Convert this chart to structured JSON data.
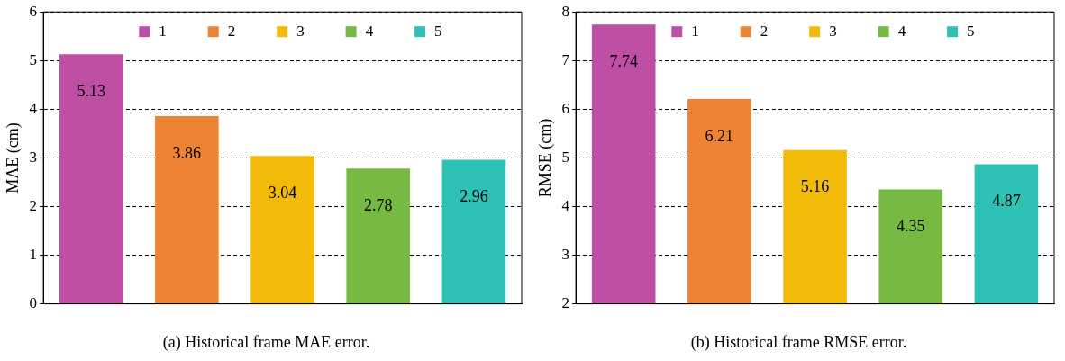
{
  "chart_data": [
    {
      "type": "bar",
      "ylabel": "MAE (cm)",
      "categories": [
        null,
        null,
        null,
        null,
        null
      ],
      "series": [
        {
          "name": "1",
          "color": "#bf4fa5",
          "values": [
            5.13,
            null,
            null,
            null,
            null
          ]
        },
        {
          "name": "2",
          "color": "#ee8433",
          "values": [
            null,
            3.86,
            null,
            null,
            null
          ]
        },
        {
          "name": "3",
          "color": "#f2bb0a",
          "values": [
            null,
            null,
            3.04,
            null,
            null
          ]
        },
        {
          "name": "4",
          "color": "#76b943",
          "values": [
            null,
            null,
            null,
            2.78,
            null
          ]
        },
        {
          "name": "5",
          "color": "#2ec1b5",
          "values": [
            null,
            null,
            null,
            null,
            2.96
          ]
        }
      ],
      "ylim": [
        0,
        6
      ],
      "yticks": [
        0,
        1,
        2,
        3,
        4,
        5,
        6
      ],
      "grid": "y",
      "legend": "top",
      "data_labels": true,
      "annotations": [
        "(a) Historical frame MAE error."
      ]
    },
    {
      "type": "bar",
      "ylabel": "RMSE (cm)",
      "categories": [
        null,
        null,
        null,
        null,
        null
      ],
      "series": [
        {
          "name": "1",
          "color": "#bf4fa5",
          "values": [
            7.74,
            null,
            null,
            null,
            null
          ]
        },
        {
          "name": "2",
          "color": "#ee8433",
          "values": [
            null,
            6.21,
            null,
            null,
            null
          ]
        },
        {
          "name": "3",
          "color": "#f2bb0a",
          "values": [
            null,
            null,
            5.16,
            null,
            null
          ]
        },
        {
          "name": "4",
          "color": "#76b943",
          "values": [
            null,
            null,
            null,
            4.35,
            null
          ]
        },
        {
          "name": "5",
          "color": "#2ec1b5",
          "values": [
            null,
            null,
            null,
            null,
            4.87
          ]
        }
      ],
      "ylim": [
        2,
        8
      ],
      "yticks": [
        2,
        3,
        4,
        5,
        6,
        7,
        8
      ],
      "grid": "y",
      "legend": "top",
      "data_labels": true,
      "annotations": [
        "(b) Historical frame RMSE error."
      ]
    }
  ]
}
